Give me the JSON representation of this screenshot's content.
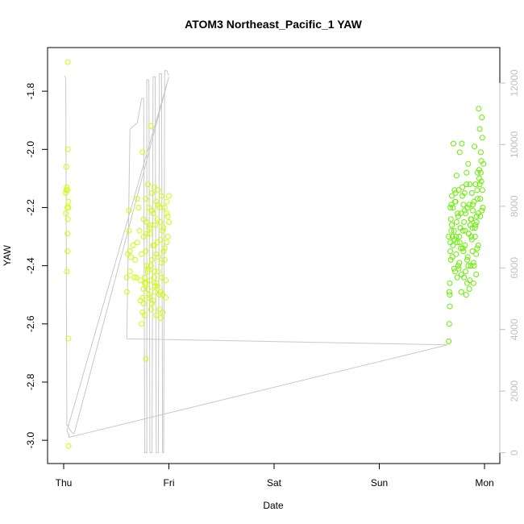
{
  "chart_data": {
    "type": "scatter",
    "title": "ATOM3 Northeast_Pacific_1 YAW",
    "xlabel": "Date",
    "ylabel": "YAW",
    "x_ticks": [
      "Thu",
      "Fri",
      "Sat",
      "Sun",
      "Mon"
    ],
    "ylim": [
      -3.08,
      -1.65
    ],
    "y_ticks": [
      "-3.0",
      "-2.8",
      "-2.6",
      "-2.4",
      "-2.2",
      "-2.0",
      "-1.8"
    ],
    "y_tick_values": [
      -3.0,
      -2.8,
      -2.6,
      -2.4,
      -2.2,
      -2.0,
      -1.8
    ],
    "y2lim": [
      -350,
      13150
    ],
    "y2_ticks": [
      "0",
      "2000",
      "4000",
      "6000",
      "8000",
      "10000",
      "12000"
    ],
    "y2_tick_values": [
      0,
      2000,
      4000,
      6000,
      8000,
      10000,
      12000
    ],
    "grid": false,
    "colors": {
      "points_early": "#ccff00",
      "points_late": "#66ee00",
      "line": "#c8c8c8",
      "axis": "#000000",
      "right_axis": "#c0c0c0"
    },
    "series": [
      {
        "type": "scatter",
        "x": [
          0.02,
          0.02,
          0.025,
          0.025,
          0.03,
          0.035,
          0.035,
          0.035,
          0.03,
          0.04,
          0.04,
          0.045,
          0.045,
          0.04,
          0.045,
          0.035,
          0.045,
          0.6,
          0.6,
          0.61,
          0.62,
          0.62,
          0.63,
          0.63,
          0.64,
          0.66,
          0.67,
          0.68,
          0.69,
          0.7,
          0.7,
          0.71,
          0.72,
          0.73,
          0.73,
          0.74,
          0.75,
          0.75,
          0.76,
          0.76,
          0.77,
          0.77,
          0.78,
          0.78,
          0.79,
          0.79,
          0.8,
          0.8,
          0.81,
          0.81,
          0.82,
          0.82,
          0.83,
          0.83,
          0.84,
          0.84,
          0.85,
          0.85,
          0.86,
          0.86,
          0.87,
          0.87,
          0.88,
          0.88,
          0.89,
          0.89,
          0.9,
          0.9,
          0.91,
          0.91,
          0.92,
          0.92,
          0.93,
          0.93,
          0.94,
          0.95,
          0.96,
          0.97,
          0.98,
          0.99,
          1.0,
          1.0,
          0.74,
          0.76,
          0.78,
          0.8,
          0.82,
          0.84,
          0.86,
          0.88,
          0.9,
          0.92,
          0.94,
          0.96,
          0.98,
          0.75,
          0.77,
          0.79,
          0.81,
          0.83,
          0.85,
          0.87,
          0.89,
          0.91,
          0.93,
          0.95,
          0.97,
          0.99,
          0.76,
          0.8,
          0.84,
          0.88,
          0.92,
          0.96,
          0.78,
          0.82,
          0.86,
          0.9,
          0.94,
          0.98
        ],
        "y": [
          -2.22,
          -2.15,
          -2.06,
          -2.14,
          -2.13,
          -2.2,
          -2.29,
          -2.35,
          -2.42,
          -1.7,
          -2.0,
          -2.18,
          -2.2,
          -2.24,
          -2.65,
          -2.14,
          -3.02,
          -2.49,
          -2.44,
          -2.36,
          -2.28,
          -2.21,
          -2.35,
          -2.42,
          -2.37,
          -2.33,
          -2.44,
          -2.38,
          -2.44,
          -2.32,
          -2.17,
          -2.2,
          -2.28,
          -2.45,
          -2.52,
          -2.6,
          -2.01,
          -2.51,
          -2.3,
          -2.24,
          -2.46,
          -2.57,
          -2.17,
          -2.35,
          -2.25,
          -2.4,
          -2.12,
          -2.48,
          -2.2,
          -2.5,
          -2.29,
          -2.45,
          -1.92,
          -2.55,
          -2.15,
          -2.38,
          -2.22,
          -2.52,
          -2.13,
          -2.44,
          -2.26,
          -2.49,
          -2.18,
          -2.57,
          -2.32,
          -2.47,
          -2.14,
          -2.42,
          -2.2,
          -2.5,
          -2.25,
          -2.58,
          -2.16,
          -2.44,
          -2.28,
          -2.35,
          -2.2,
          -2.51,
          -2.18,
          -2.23,
          -2.16,
          -2.25,
          -2.36,
          -2.48,
          -2.72,
          -2.41,
          -2.26,
          -2.53,
          -2.33,
          -2.46,
          -2.19,
          -2.31,
          -2.56,
          -2.38,
          -2.22,
          -2.56,
          -2.44,
          -2.29,
          -2.51,
          -2.4,
          -2.33,
          -2.47,
          -2.24,
          -2.55,
          -2.39,
          -2.27,
          -2.45,
          -2.3,
          -2.53,
          -2.42,
          -2.21,
          -2.36,
          -2.49,
          -2.34,
          -2.46,
          -2.27,
          -2.42,
          -2.37,
          -2.5,
          -2.32
        ]
      },
      {
        "type": "scatter",
        "x": [
          3.66,
          3.665,
          3.67,
          3.675,
          3.68,
          3.685,
          3.69,
          3.695,
          3.7,
          3.705,
          3.71,
          3.715,
          3.72,
          3.725,
          3.73,
          3.735,
          3.74,
          3.745,
          3.75,
          3.755,
          3.76,
          3.765,
          3.77,
          3.775,
          3.78,
          3.785,
          3.79,
          3.795,
          3.8,
          3.805,
          3.81,
          3.815,
          3.82,
          3.825,
          3.83,
          3.835,
          3.84,
          3.845,
          3.85,
          3.855,
          3.86,
          3.865,
          3.87,
          3.875,
          3.88,
          3.885,
          3.89,
          3.895,
          3.9,
          3.905,
          3.91,
          3.915,
          3.92,
          3.925,
          3.93,
          3.935,
          3.94,
          3.945,
          3.95,
          3.955,
          3.96,
          3.965,
          3.97,
          3.975,
          3.98,
          3.985,
          3.99,
          3.67,
          3.68,
          3.69,
          3.7,
          3.71,
          3.72,
          3.73,
          3.74,
          3.75,
          3.76,
          3.77,
          3.78,
          3.79,
          3.8,
          3.81,
          3.82,
          3.83,
          3.84,
          3.85,
          3.86,
          3.87,
          3.88,
          3.89,
          3.9,
          3.91,
          3.92,
          3.93,
          3.94,
          3.95,
          3.96,
          3.97,
          3.98,
          3.675,
          3.695,
          3.715,
          3.735,
          3.755,
          3.775,
          3.795,
          3.815,
          3.835,
          3.855,
          3.875,
          3.895,
          3.915,
          3.935,
          3.955,
          3.975,
          3.66,
          3.665,
          3.67,
          3.675,
          3.685,
          3.725,
          3.765,
          3.805,
          3.845,
          3.885,
          3.925,
          3.965
        ],
        "y": [
          -2.3,
          -2.6,
          -2.46,
          -2.35,
          -2.24,
          -2.19,
          -2.16,
          -2.3,
          -2.2,
          -1.98,
          -2.28,
          -2.14,
          -2.42,
          -2.18,
          -2.36,
          -2.09,
          -2.32,
          -2.22,
          -2.4,
          -2.14,
          -2.3,
          -2.01,
          -2.27,
          -2.34,
          -2.43,
          -1.98,
          -2.13,
          -2.28,
          -2.19,
          -2.44,
          -2.15,
          -2.33,
          -2.22,
          -2.5,
          -2.08,
          -2.38,
          -2.2,
          -2.05,
          -2.29,
          -2.48,
          -2.12,
          -2.26,
          -2.4,
          -2.24,
          -2.15,
          -2.35,
          -2.21,
          -2.46,
          -2.18,
          -1.99,
          -2.3,
          -2.12,
          -2.43,
          -2.25,
          -2.34,
          -2.08,
          -2.22,
          -1.86,
          -2.07,
          -1.93,
          -2.17,
          -2.01,
          -2.11,
          -1.89,
          -2.14,
          -2.2,
          -2.05,
          -2.5,
          -2.38,
          -2.26,
          -2.33,
          -2.41,
          -2.18,
          -2.3,
          -2.44,
          -2.23,
          -2.39,
          -2.27,
          -2.49,
          -2.16,
          -2.35,
          -2.21,
          -2.42,
          -2.12,
          -2.37,
          -2.29,
          -2.45,
          -2.24,
          -2.31,
          -2.19,
          -2.4,
          -2.27,
          -2.36,
          -2.14,
          -2.33,
          -2.1,
          -2.23,
          -2.04,
          -1.96,
          -2.2,
          -2.37,
          -2.31,
          -2.25,
          -2.41,
          -2.22,
          -2.34,
          -2.28,
          -2.46,
          -2.19,
          -2.3,
          -2.39,
          -2.26,
          -2.17,
          -2.12,
          -2.21,
          -2.66,
          -2.49,
          -2.54,
          -2.32,
          -2.28,
          -2.15,
          -2.32,
          -2.25,
          -2.4,
          -2.27,
          -2.23,
          -2.08
        ]
      },
      {
        "type": "line",
        "axis": "right",
        "x": [
          0.01,
          0.01,
          0.02,
          0.03,
          0.035,
          0.04,
          0.05,
          0.06,
          0.07,
          0.08,
          0.1,
          1.0,
          0.03,
          0.05,
          0.05,
          3.65,
          0.6,
          0.6,
          0.63,
          0.63,
          0.66,
          0.7,
          0.74,
          0.76,
          0.77,
          0.79,
          0.79,
          0.81,
          0.82,
          0.84,
          0.85,
          0.87,
          0.88,
          0.9,
          0.91,
          0.93,
          0.94,
          0.95,
          0.96,
          0.98,
          0.99,
          1.0,
          1.0
        ],
        "y": [
          12200,
          12210,
          12150,
          900,
          900,
          850,
          800,
          750,
          700,
          650,
          620,
          12200,
          700,
          600,
          500,
          3500,
          3700,
          3700,
          10500,
          10500,
          10600,
          10700,
          11500,
          11500,
          0,
          0,
          12100,
          12100,
          0,
          0,
          12200,
          12200,
          0,
          0,
          12300,
          12300,
          0,
          0,
          12400,
          12400,
          12300,
          12250,
          12250
        ]
      }
    ]
  }
}
